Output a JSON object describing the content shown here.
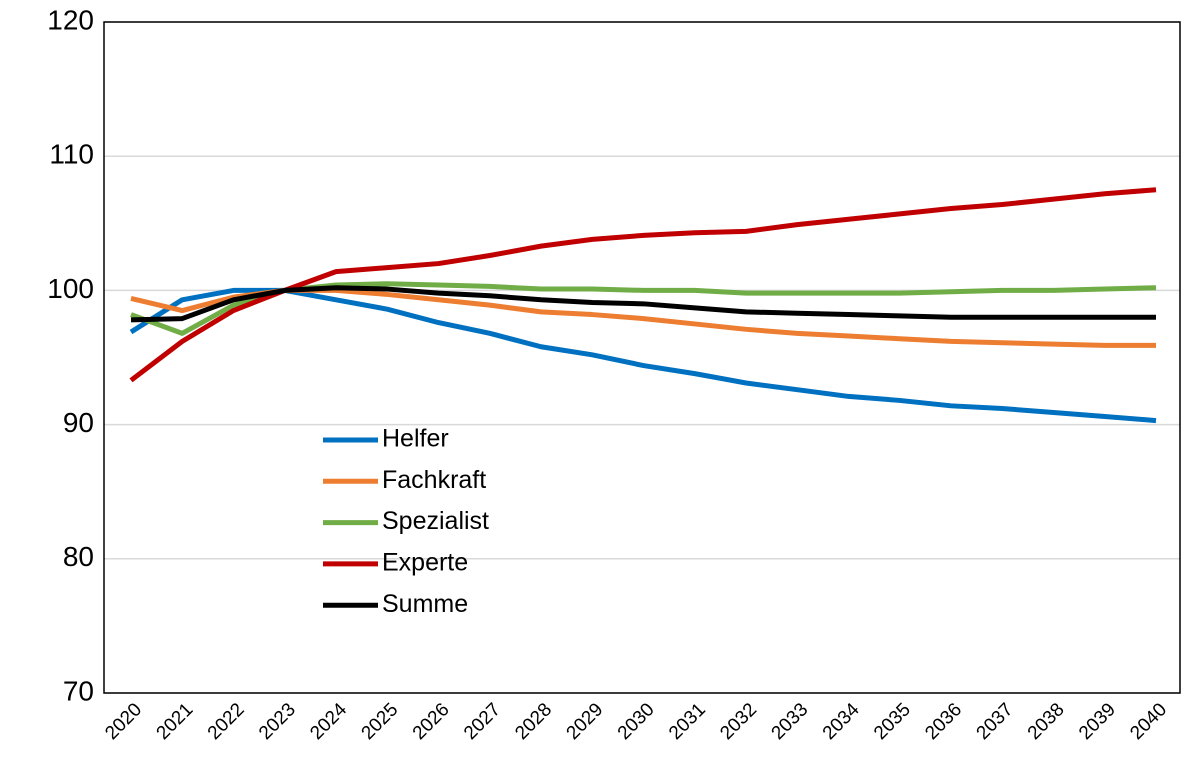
{
  "chart_data": {
    "type": "line",
    "categories": [
      "2020",
      "2021",
      "2022",
      "2023",
      "2024",
      "2025",
      "2026",
      "2027",
      "2028",
      "2029",
      "2030",
      "2031",
      "2032",
      "2033",
      "2034",
      "2035",
      "2036",
      "2037",
      "2038",
      "2039",
      "2040"
    ],
    "series": [
      {
        "name": "Helfer",
        "color": "#0070c0",
        "values": [
          96.9,
          99.3,
          100,
          100,
          99.3,
          98.6,
          97.6,
          96.8,
          95.8,
          95.2,
          94.4,
          93.8,
          93.1,
          92.6,
          92.1,
          91.8,
          91.4,
          91.2,
          90.9,
          90.6,
          90.3
        ]
      },
      {
        "name": "Fachkraft",
        "color": "#ed7d31",
        "values": [
          99.4,
          98.5,
          99.5,
          100,
          100,
          99.7,
          99.3,
          98.9,
          98.4,
          98.2,
          97.9,
          97.5,
          97.1,
          96.8,
          96.6,
          96.4,
          96.2,
          96.1,
          96.0,
          95.9,
          95.9
        ]
      },
      {
        "name": "Spezialist",
        "color": "#70ad47",
        "values": [
          98.2,
          96.8,
          98.9,
          100,
          100.4,
          100.5,
          100.4,
          100.3,
          100.1,
          100.1,
          100,
          100,
          99.8,
          99.8,
          99.8,
          99.8,
          99.9,
          100,
          100,
          100.1,
          100.2
        ]
      },
      {
        "name": "Experte",
        "color": "#c00000",
        "values": [
          93.3,
          96.2,
          98.5,
          100,
          101.4,
          101.7,
          102.0,
          102.6,
          103.3,
          103.8,
          104.1,
          104.3,
          104.4,
          104.9,
          105.3,
          105.7,
          106.1,
          106.4,
          106.8,
          107.2,
          107.5
        ]
      },
      {
        "name": "Summe",
        "color": "#000000",
        "values": [
          97.8,
          97.9,
          99.3,
          100,
          100.2,
          100.1,
          99.8,
          99.6,
          99.3,
          99.1,
          99.0,
          98.7,
          98.4,
          98.3,
          98.2,
          98.1,
          98.0,
          98.0,
          98.0,
          98.0,
          98.0
        ]
      }
    ],
    "ylim": [
      70,
      120
    ],
    "yticks": [
      70,
      80,
      90,
      100,
      110,
      120
    ],
    "grid": true
  }
}
